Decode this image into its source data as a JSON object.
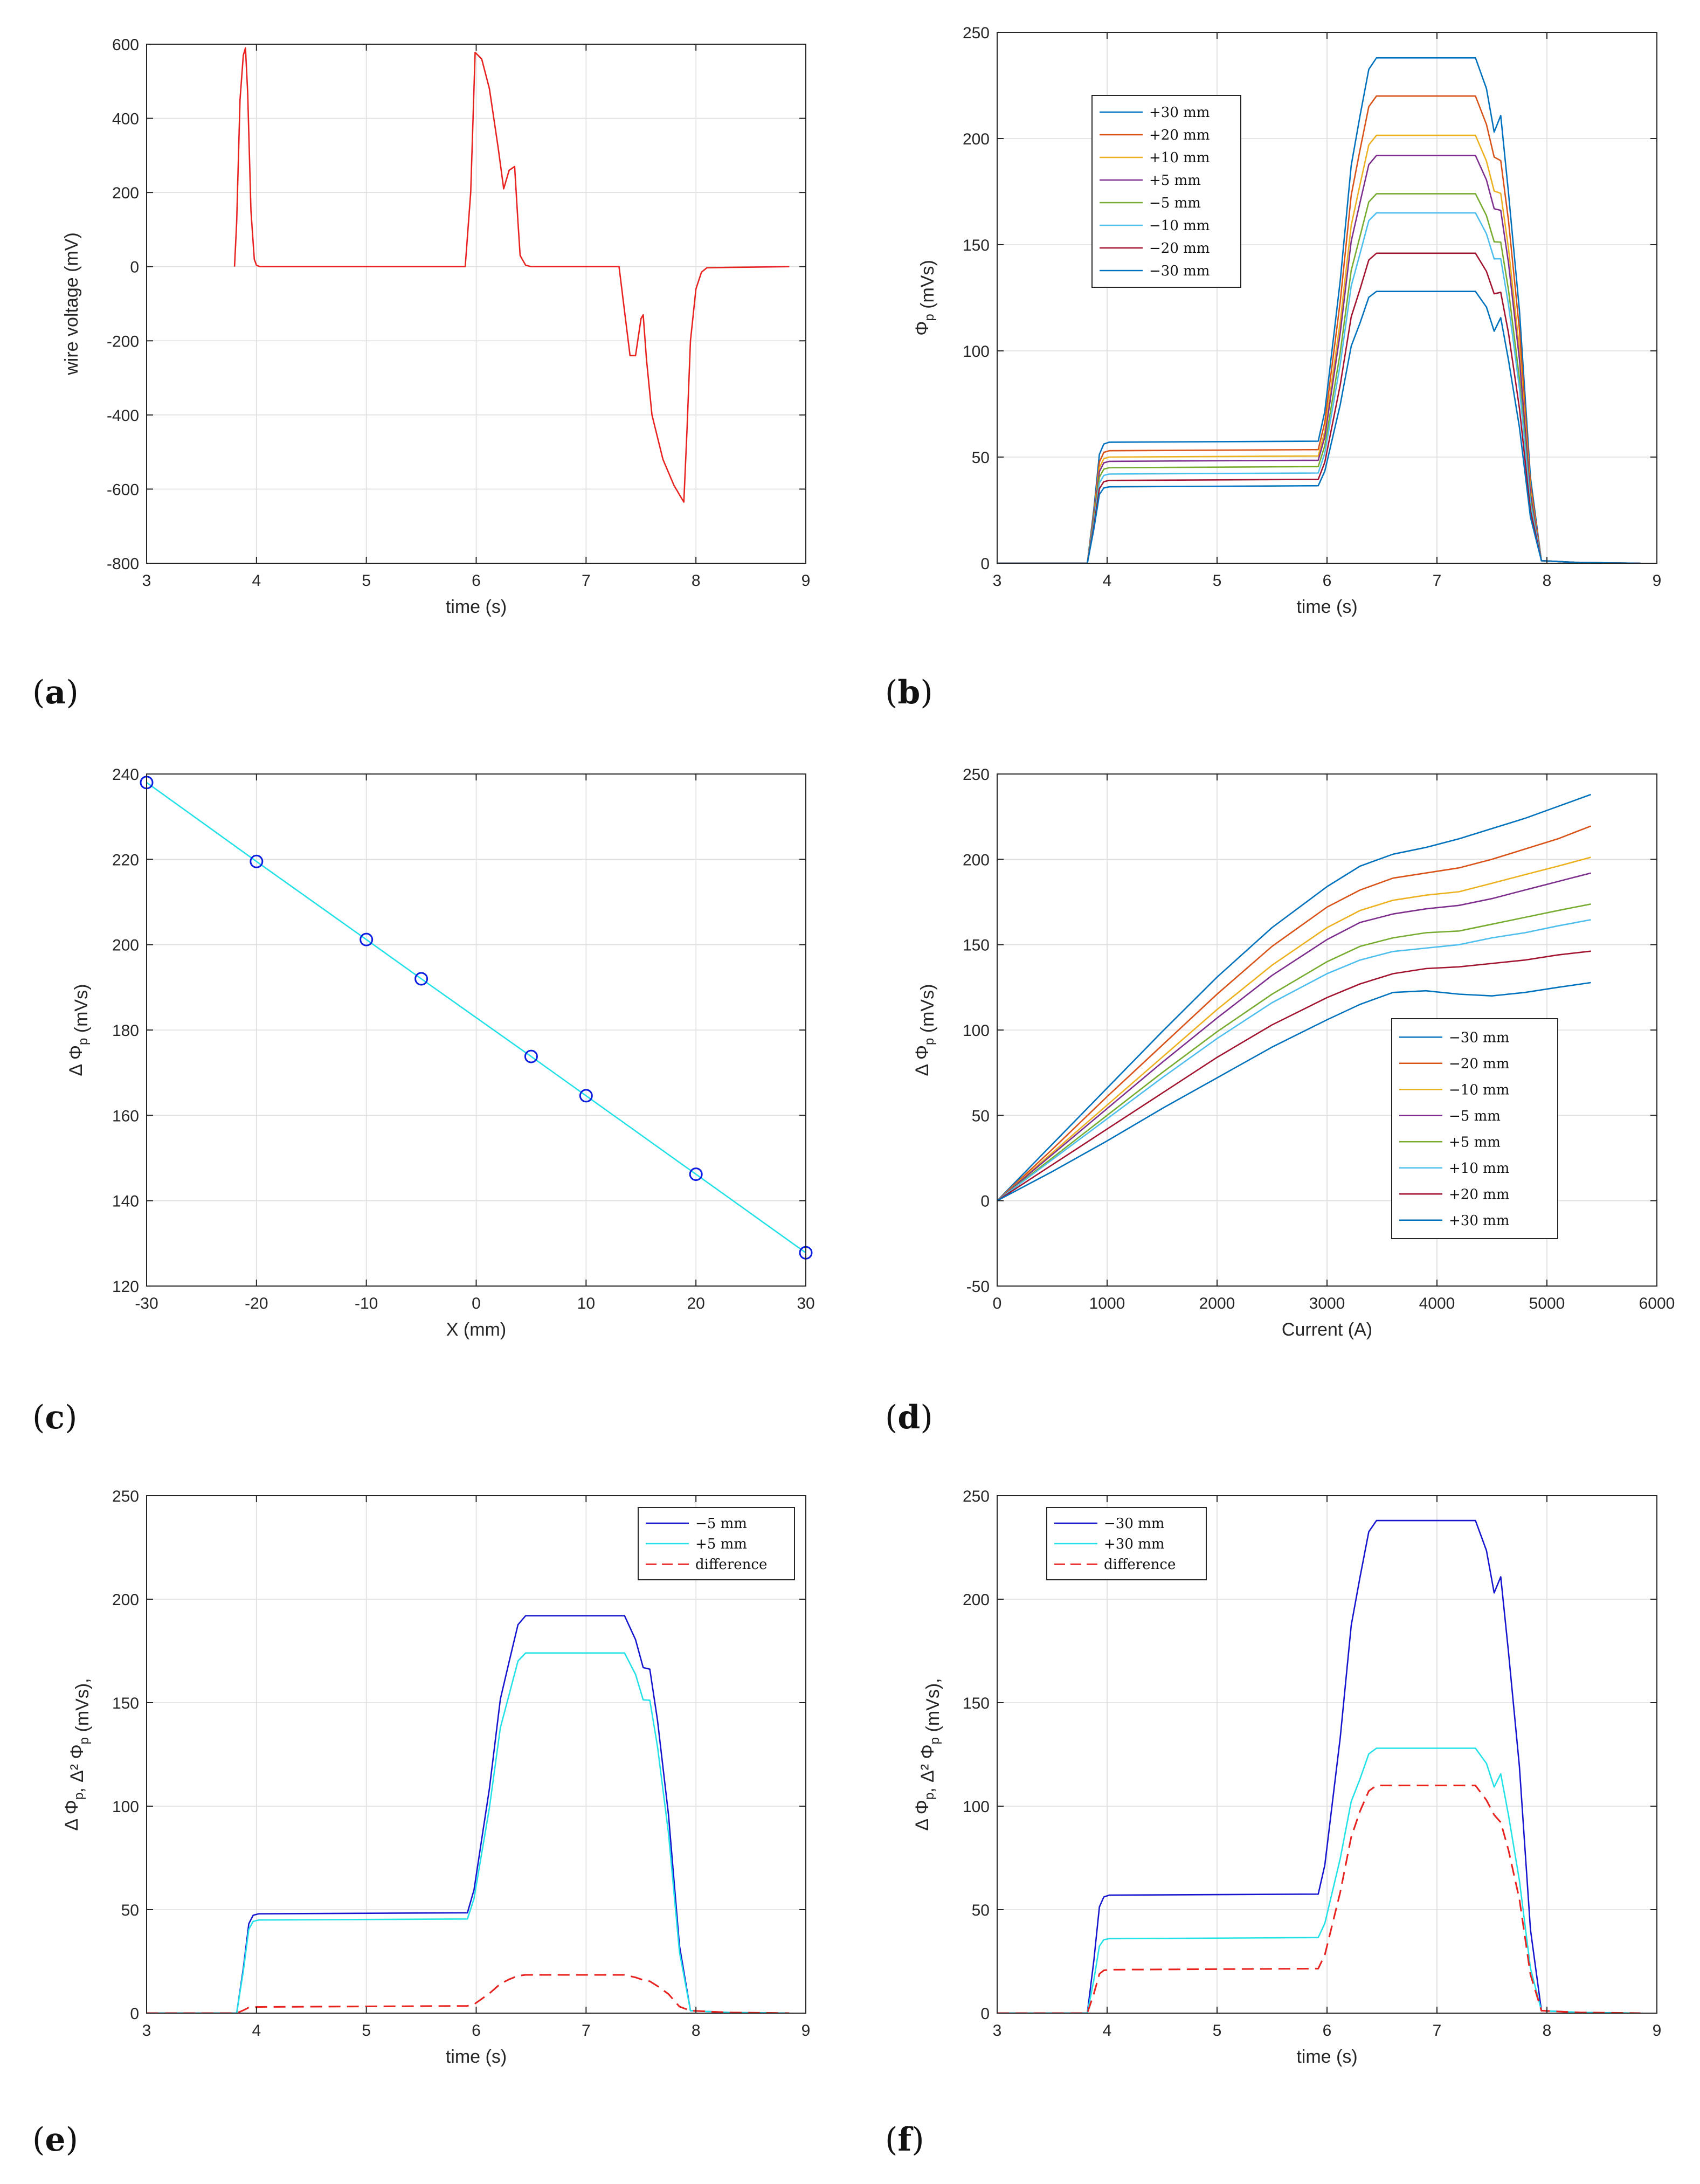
{
  "colors": {
    "c30p": "#0072BD",
    "c20p": "#D95319",
    "c10p": "#EDB120",
    "c5p": "#7E2F8E",
    "c5m": "#77AC30",
    "c10m": "#4DBEEE",
    "c20m": "#A2142F",
    "red": "#e8221f",
    "blue": "#1515d0",
    "cyan": "#22e2e8",
    "marker": "#0a1de0"
  },
  "chart_data": [
    {
      "id": "a",
      "panel_label": "(a)",
      "type": "line",
      "xlabel": "time (s)",
      "ylabel": "wire voltage (mV)",
      "xlim": [
        3,
        9
      ],
      "ylim": [
        -800,
        600
      ],
      "xticks": [
        3,
        4,
        5,
        6,
        7,
        8,
        9
      ],
      "yticks": [
        -800,
        -600,
        -400,
        -200,
        0,
        200,
        400,
        600
      ],
      "legend": null,
      "series": [
        {
          "name": "wire voltage",
          "color": "#e8221f",
          "dash": false,
          "x": [
            3.8,
            3.82,
            3.85,
            3.88,
            3.9,
            3.92,
            3.95,
            3.98,
            4.0,
            4.03,
            4.1,
            5.9,
            5.95,
            5.99,
            6.05,
            6.12,
            6.2,
            6.25,
            6.3,
            6.35,
            6.38,
            6.4,
            6.45,
            6.5,
            7.0,
            7.3,
            7.35,
            7.4,
            7.45,
            7.5,
            7.52,
            7.55,
            7.6,
            7.7,
            7.8,
            7.86,
            7.89,
            7.92,
            7.95,
            8.0,
            8.05,
            8.1,
            8.3,
            8.85
          ],
          "y": [
            0,
            120,
            450,
            570,
            590,
            470,
            150,
            20,
            4,
            0,
            0,
            0,
            200,
            578,
            560,
            480,
            320,
            210,
            260,
            270,
            120,
            30,
            4,
            0,
            0,
            0,
            -120,
            -240,
            -240,
            -140,
            -130,
            -250,
            -400,
            -520,
            -590,
            -620,
            -635,
            -430,
            -200,
            -60,
            -15,
            -3,
            -2,
            0
          ]
        }
      ]
    },
    {
      "id": "b",
      "panel_label": "(b)",
      "type": "line",
      "xlabel": "time (s)",
      "ylabel": "Φp (mVs)",
      "xlim": [
        3,
        9
      ],
      "ylim": [
        0,
        250
      ],
      "xticks": [
        3,
        4,
        5,
        6,
        7,
        8,
        9
      ],
      "yticks": [
        0,
        50,
        100,
        150,
        200,
        250
      ],
      "legend": {
        "position": "upper-left"
      },
      "series": [
        {
          "name": "+30 mm",
          "color": "#0072BD",
          "dash": false,
          "profile": [
            57,
            238,
            1,
            3
          ]
        },
        {
          "name": "+20 mm",
          "color": "#D95319",
          "dash": false,
          "profile": [
            53,
            220,
            1,
            1
          ]
        },
        {
          "name": "+10 mm",
          "color": "#EDB120",
          "dash": false,
          "profile": [
            50,
            201.5,
            1,
            1
          ]
        },
        {
          "name": "+5 mm",
          "color": "#7E2F8E",
          "dash": false,
          "profile": [
            48,
            192,
            1,
            1
          ]
        },
        {
          "name": "−5 mm",
          "color": "#77AC30",
          "dash": false,
          "profile": [
            45,
            174,
            1,
            1
          ]
        },
        {
          "name": "−10 mm",
          "color": "#4DBEEE",
          "dash": false,
          "profile": [
            42,
            165,
            1,
            1
          ]
        },
        {
          "name": "−20 mm",
          "color": "#A2142F",
          "dash": false,
          "profile": [
            39,
            146,
            1,
            1
          ]
        },
        {
          "name": "−30 mm",
          "color": "#0072BD",
          "dash": false,
          "profile": [
            36,
            128,
            1,
            2
          ]
        }
      ]
    },
    {
      "id": "c",
      "panel_label": "(c)",
      "type": "scatter",
      "xlabel": "X (mm)",
      "ylabel": "Δ Φp (mVs)",
      "xlim": [
        -30,
        30
      ],
      "ylim": [
        120,
        240
      ],
      "xticks": [
        -30,
        -20,
        -10,
        0,
        10,
        20,
        30
      ],
      "yticks": [
        120,
        140,
        160,
        180,
        200,
        220,
        240
      ],
      "legend": null,
      "series": [
        {
          "name": "ΔΦp vs X",
          "color": "#22e2e8",
          "marker_color": "#0a1de0",
          "dash": false,
          "markers": true,
          "x": [
            -30,
            -20,
            -10,
            -5,
            5,
            10,
            20,
            30
          ],
          "y": [
            238,
            219.5,
            201.2,
            192,
            173.8,
            164.6,
            146.2,
            127.8
          ]
        }
      ]
    },
    {
      "id": "d",
      "panel_label": "(d)",
      "type": "line",
      "xlabel": "Current (A)",
      "ylabel": "Δ Φp (mVs)",
      "xlim": [
        0,
        6000
      ],
      "ylim": [
        -50,
        250
      ],
      "xticks": [
        0,
        1000,
        2000,
        3000,
        4000,
        5000,
        6000
      ],
      "yticks": [
        -50,
        0,
        50,
        100,
        150,
        200,
        250
      ],
      "legend": {
        "position": "lower-right"
      },
      "series": [
        {
          "name": "−30 mm",
          "color": "#0072BD",
          "dash": false,
          "x": [
            0,
            500,
            1000,
            1500,
            2000,
            2500,
            3000,
            3300,
            3600,
            3900,
            4200,
            4500,
            4800,
            5100,
            5400
          ],
          "y": [
            0,
            33,
            66,
            99,
            131,
            160,
            184,
            196,
            203,
            207,
            212,
            218,
            224,
            231,
            238
          ]
        },
        {
          "name": "−20 mm",
          "color": "#D95319",
          "dash": false,
          "x": [
            0,
            500,
            1000,
            1500,
            2000,
            2500,
            3000,
            3300,
            3600,
            3900,
            4200,
            4500,
            4800,
            5100,
            5400
          ],
          "y": [
            0,
            30,
            61,
            91,
            121,
            149,
            172,
            182,
            189,
            192,
            195,
            200,
            206,
            212,
            219.5
          ]
        },
        {
          "name": "−10 mm",
          "color": "#EDB120",
          "dash": false,
          "x": [
            0,
            500,
            1000,
            1500,
            2000,
            2500,
            3000,
            3300,
            3600,
            3900,
            4200,
            4500,
            4800,
            5100,
            5400
          ],
          "y": [
            0,
            28,
            56,
            84,
            112,
            138,
            160,
            170,
            176,
            179,
            181,
            186,
            191,
            196,
            201.2
          ]
        },
        {
          "name": "−5 mm",
          "color": "#7E2F8E",
          "dash": false,
          "x": [
            0,
            500,
            1000,
            1500,
            2000,
            2500,
            3000,
            3300,
            3600,
            3900,
            4200,
            4500,
            4800,
            5100,
            5400
          ],
          "y": [
            0,
            27,
            54,
            81,
            107,
            132,
            153,
            163,
            168,
            171,
            173,
            177,
            182,
            187,
            192
          ]
        },
        {
          "name": "+5 mm",
          "color": "#77AC30",
          "dash": false,
          "x": [
            0,
            500,
            1000,
            1500,
            2000,
            2500,
            3000,
            3300,
            3600,
            3900,
            4200,
            4500,
            4800,
            5100,
            5400
          ],
          "y": [
            0,
            25,
            50,
            75,
            99,
            121,
            140,
            149,
            154,
            157,
            158,
            162,
            166,
            170,
            173.8
          ]
        },
        {
          "name": "+10 mm",
          "color": "#4DBEEE",
          "dash": false,
          "x": [
            0,
            500,
            1000,
            1500,
            2000,
            2500,
            3000,
            3300,
            3600,
            3900,
            4200,
            4500,
            4800,
            5100,
            5400
          ],
          "y": [
            0,
            24,
            48,
            72,
            95,
            116,
            133,
            141,
            146,
            148,
            150,
            154,
            157,
            161,
            164.6
          ]
        },
        {
          "name": "+20 mm",
          "color": "#A2142F",
          "dash": false,
          "x": [
            0,
            500,
            1000,
            1500,
            2000,
            2500,
            3000,
            3300,
            3600,
            3900,
            4200,
            4500,
            4800,
            5100,
            5400
          ],
          "y": [
            0,
            21,
            42,
            63,
            84,
            103,
            119,
            127,
            133,
            136,
            137,
            139,
            141,
            144,
            146.2
          ]
        },
        {
          "name": "+30 mm",
          "color": "#0072BD",
          "dash": false,
          "x": [
            0,
            500,
            1000,
            1500,
            2000,
            2500,
            3000,
            3300,
            3600,
            3900,
            4200,
            4500,
            4800,
            5100,
            5400
          ],
          "y": [
            0,
            17,
            35,
            54,
            72,
            90,
            106,
            115,
            122,
            123,
            121,
            120,
            122,
            125,
            127.8
          ]
        }
      ]
    },
    {
      "id": "e",
      "panel_label": "(e)",
      "type": "line",
      "xlabel": "time (s)",
      "ylabel": "Δ Φp, Δ² Φp (mVs),",
      "xlim": [
        3,
        9
      ],
      "ylim": [
        0,
        250
      ],
      "xticks": [
        3,
        4,
        5,
        6,
        7,
        8,
        9
      ],
      "yticks": [
        0,
        50,
        100,
        150,
        200,
        250
      ],
      "legend": {
        "position": "upper-right"
      },
      "series": [
        {
          "name": "−5 mm",
          "color": "#1515d0",
          "dash": false,
          "profile": [
            48,
            192,
            1,
            1
          ]
        },
        {
          "name": "+5 mm",
          "color": "#22e2e8",
          "dash": false,
          "profile": [
            45,
            174,
            1,
            1
          ]
        },
        {
          "name": "difference",
          "color": "#e8221f",
          "dash": true,
          "profile": [
            3,
            18.5,
            0,
            0
          ]
        }
      ]
    },
    {
      "id": "f",
      "panel_label": "(f)",
      "type": "line",
      "xlabel": "time (s)",
      "ylabel": "Δ Φp, Δ² Φp (mVs),",
      "xlim": [
        3,
        9
      ],
      "ylim": [
        0,
        250
      ],
      "xticks": [
        3,
        4,
        5,
        6,
        7,
        8,
        9
      ],
      "yticks": [
        0,
        50,
        100,
        150,
        200,
        250
      ],
      "legend": {
        "position": "upper-left"
      },
      "series": [
        {
          "name": "−30 mm",
          "color": "#1515d0",
          "dash": false,
          "profile": [
            57,
            238,
            1,
            3
          ]
        },
        {
          "name": "+30 mm",
          "color": "#22e2e8",
          "dash": false,
          "profile": [
            36,
            128,
            1,
            2
          ]
        },
        {
          "name": "difference",
          "color": "#e8221f",
          "dash": true,
          "profile": [
            21,
            110,
            0,
            0
          ]
        }
      ]
    }
  ]
}
